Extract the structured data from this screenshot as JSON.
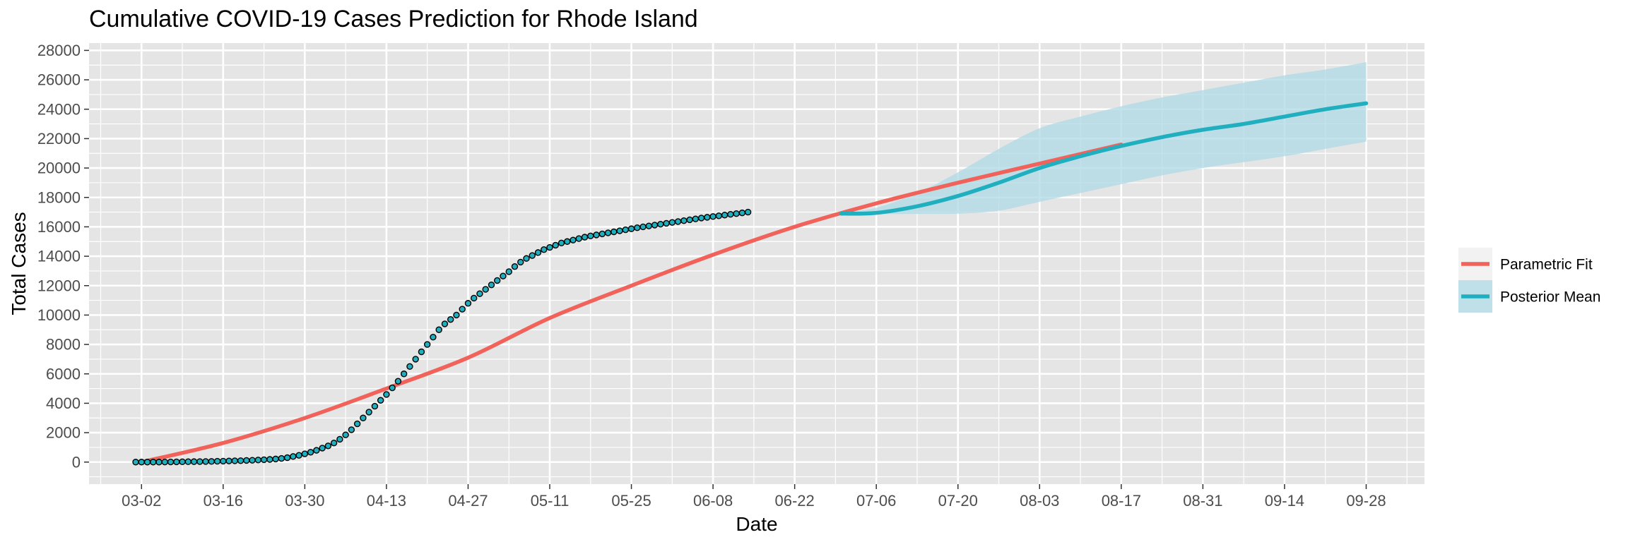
{
  "chart_data": {
    "type": "line",
    "title": "Cumulative COVID-19 Cases Prediction for Rhode Island",
    "xlabel": "Date",
    "ylabel": "Total Cases",
    "x_axis": {
      "type": "date",
      "year": 2020,
      "range": [
        "2020-02-22",
        "2020-10-08"
      ],
      "ticks": [
        "03-02",
        "03-16",
        "03-30",
        "04-13",
        "04-27",
        "05-11",
        "05-25",
        "06-08",
        "06-22",
        "07-06",
        "07-20",
        "08-03",
        "08-17",
        "08-31",
        "09-14",
        "09-28"
      ]
    },
    "y_axis": {
      "range": [
        -1500,
        28500
      ],
      "ticks": [
        0,
        2000,
        4000,
        6000,
        8000,
        10000,
        12000,
        14000,
        16000,
        18000,
        20000,
        22000,
        24000,
        26000,
        28000
      ]
    },
    "grid": true,
    "legend_position": "right",
    "colors": {
      "parametric_fit": "#F0625A",
      "posterior_mean": "#1FAFBF",
      "credible_band": "#ADD8E6",
      "observed_fill": "#1FAFBF",
      "observed_stroke": "#000000",
      "panel_background": "#E5E5E5",
      "grid_line": "#FFFFFF"
    },
    "series": [
      {
        "name": "Parametric Fit",
        "kind": "line",
        "points": [
          [
            "2020-03-02",
            0
          ],
          [
            "2020-03-16",
            1300
          ],
          [
            "2020-03-30",
            3000
          ],
          [
            "2020-04-13",
            5000
          ],
          [
            "2020-04-27",
            7100
          ],
          [
            "2020-05-11",
            9800
          ],
          [
            "2020-05-25",
            12000
          ],
          [
            "2020-06-08",
            14100
          ],
          [
            "2020-06-22",
            16000
          ],
          [
            "2020-07-06",
            17600
          ],
          [
            "2020-07-20",
            19000
          ],
          [
            "2020-08-03",
            20300
          ],
          [
            "2020-08-17",
            21600
          ]
        ]
      },
      {
        "name": "Posterior Mean",
        "kind": "line",
        "points": [
          [
            "2020-06-30",
            16900
          ],
          [
            "2020-07-06",
            16950
          ],
          [
            "2020-07-13",
            17400
          ],
          [
            "2020-07-20",
            18100
          ],
          [
            "2020-07-27",
            19000
          ],
          [
            "2020-08-03",
            20000
          ],
          [
            "2020-08-10",
            20800
          ],
          [
            "2020-08-17",
            21500
          ],
          [
            "2020-08-24",
            22100
          ],
          [
            "2020-08-31",
            22600
          ],
          [
            "2020-09-07",
            23000
          ],
          [
            "2020-09-14",
            23500
          ],
          [
            "2020-09-21",
            24000
          ],
          [
            "2020-09-28",
            24400
          ]
        ],
        "band_lower": [
          [
            "2020-06-30",
            16850
          ],
          [
            "2020-07-06",
            16870
          ],
          [
            "2020-07-13",
            16880
          ],
          [
            "2020-07-20",
            16900
          ],
          [
            "2020-07-27",
            17100
          ],
          [
            "2020-08-03",
            17700
          ],
          [
            "2020-08-10",
            18300
          ],
          [
            "2020-08-17",
            18900
          ],
          [
            "2020-08-24",
            19500
          ],
          [
            "2020-08-31",
            20000
          ],
          [
            "2020-09-07",
            20400
          ],
          [
            "2020-09-14",
            20800
          ],
          [
            "2020-09-21",
            21300
          ],
          [
            "2020-09-28",
            21800
          ]
        ],
        "band_upper": [
          [
            "2020-06-30",
            16950
          ],
          [
            "2020-07-06",
            17300
          ],
          [
            "2020-07-13",
            18300
          ],
          [
            "2020-07-20",
            19700
          ],
          [
            "2020-07-27",
            21300
          ],
          [
            "2020-08-03",
            22700
          ],
          [
            "2020-08-10",
            23500
          ],
          [
            "2020-08-17",
            24200
          ],
          [
            "2020-08-24",
            24800
          ],
          [
            "2020-08-31",
            25300
          ],
          [
            "2020-09-07",
            25800
          ],
          [
            "2020-09-14",
            26300
          ],
          [
            "2020-09-21",
            26700
          ],
          [
            "2020-09-28",
            27200
          ]
        ]
      }
    ],
    "observed_points": {
      "start_date": "2020-03-01",
      "values": [
        0,
        0,
        0,
        0,
        0,
        5,
        10,
        15,
        20,
        25,
        30,
        35,
        40,
        45,
        55,
        65,
        75,
        85,
        95,
        110,
        125,
        140,
        160,
        180,
        210,
        250,
        300,
        380,
        460,
        560,
        670,
        800,
        950,
        1100,
        1300,
        1550,
        1850,
        2200,
        2600,
        3000,
        3400,
        3800,
        4200,
        4600,
        5050,
        5500,
        6000,
        6500,
        7000,
        7500,
        8000,
        8500,
        9000,
        9400,
        9700,
        10000,
        10400,
        10800,
        11150,
        11450,
        11750,
        12050,
        12350,
        12650,
        12950,
        13300,
        13600,
        13850,
        14050,
        14250,
        14450,
        14600,
        14750,
        14900,
        15000,
        15100,
        15200,
        15300,
        15380,
        15450,
        15520,
        15590,
        15660,
        15730,
        15800,
        15870,
        15940,
        16000,
        16060,
        16120,
        16180,
        16240,
        16300,
        16360,
        16420,
        16480,
        16540,
        16600,
        16650,
        16700,
        16750,
        16800,
        16850,
        16900,
        16950,
        17000
      ]
    }
  }
}
